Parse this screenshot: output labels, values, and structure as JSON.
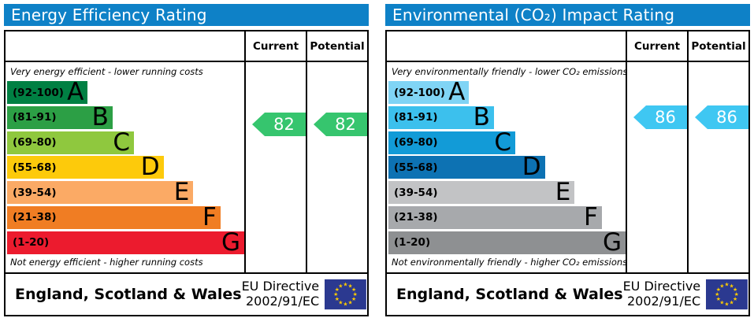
{
  "charts": [
    {
      "title": "Energy Efficiency Rating",
      "header_color": "#0e81c7",
      "columns": [
        "Current",
        "Potential"
      ],
      "caption_top": "Very energy efficient - lower running costs",
      "caption_bottom": "Not energy efficient - higher running costs",
      "bands": [
        {
          "range": "(92-100)",
          "letter": "A",
          "color": "#008043",
          "width_pct": 34
        },
        {
          "range": "(81-91)",
          "letter": "B",
          "color": "#2c9f45",
          "width_pct": 44.5
        },
        {
          "range": "(69-80)",
          "letter": "C",
          "color": "#8fc83e",
          "width_pct": 53.5
        },
        {
          "range": "(55-68)",
          "letter": "D",
          "color": "#fdca0b",
          "width_pct": 66
        },
        {
          "range": "(39-54)",
          "letter": "E",
          "color": "#fbaa65",
          "width_pct": 78.5
        },
        {
          "range": "(21-38)",
          "letter": "F",
          "color": "#f07d23",
          "width_pct": 90
        },
        {
          "range": "(1-20)",
          "letter": "G",
          "color": "#ec1b2e",
          "width_pct": 100
        }
      ],
      "ratings": {
        "current": 82,
        "potential": 82,
        "arrow_color": "#36c56e"
      },
      "footer": {
        "region": "England, Scotland & Wales",
        "directive_line1": "EU Directive",
        "directive_line2": "2002/91/EC"
      }
    },
    {
      "title": "Environmental (CO₂) Impact Rating",
      "header_color": "#0e81c7",
      "columns": [
        "Current",
        "Potential"
      ],
      "caption_top": "Very environmentally friendly - lower CO₂ emissions",
      "caption_bottom": "Not environmentally friendly - higher CO₂ emissions",
      "bands": [
        {
          "range": "(92-100)",
          "letter": "A",
          "color": "#80d4f5",
          "width_pct": 34
        },
        {
          "range": "(81-91)",
          "letter": "B",
          "color": "#3cc0ed",
          "width_pct": 44.5
        },
        {
          "range": "(69-80)",
          "letter": "C",
          "color": "#129bd7",
          "width_pct": 53.5
        },
        {
          "range": "(55-68)",
          "letter": "D",
          "color": "#0d72b3",
          "width_pct": 66
        },
        {
          "range": "(39-54)",
          "letter": "E",
          "color": "#c2c3c5",
          "width_pct": 78.5
        },
        {
          "range": "(21-38)",
          "letter": "F",
          "color": "#a7a9ac",
          "width_pct": 90
        },
        {
          "range": "(1-20)",
          "letter": "G",
          "color": "#8e9092",
          "width_pct": 100
        }
      ],
      "ratings": {
        "current": 86,
        "potential": 86,
        "arrow_color": "#3fc7f2"
      },
      "footer": {
        "region": "England, Scotland & Wales",
        "directive_line1": "EU Directive",
        "directive_line2": "2002/91/EC"
      }
    }
  ],
  "eu_flag": {
    "background": "#2b3990",
    "star_color": "#ffcc00"
  },
  "chart_data": [
    {
      "type": "bar",
      "orientation": "horizontal",
      "title": "Energy Efficiency Rating",
      "categories": [
        "A (92-100)",
        "B (81-91)",
        "C (69-80)",
        "D (55-68)",
        "E (39-54)",
        "F (21-38)",
        "G (1-20)"
      ],
      "values": [
        34,
        44.5,
        53.5,
        66,
        78.5,
        90,
        100
      ],
      "values_note": "band bar lengths as % of scale width (fixed EPC template)",
      "series": [
        {
          "name": "Current",
          "value": 82,
          "band": "B"
        },
        {
          "name": "Potential",
          "value": 82,
          "band": "B"
        }
      ],
      "scale": [
        1,
        100
      ],
      "annotations": [
        "Very energy efficient - lower running costs",
        "Not energy efficient - higher running costs",
        "England, Scotland & Wales",
        "EU Directive 2002/91/EC"
      ]
    },
    {
      "type": "bar",
      "orientation": "horizontal",
      "title": "Environmental (CO₂) Impact Rating",
      "categories": [
        "A (92-100)",
        "B (81-91)",
        "C (69-80)",
        "D (55-68)",
        "E (39-54)",
        "F (21-38)",
        "G (1-20)"
      ],
      "values": [
        34,
        44.5,
        53.5,
        66,
        78.5,
        90,
        100
      ],
      "values_note": "band bar lengths as % of scale width (fixed EPC template)",
      "series": [
        {
          "name": "Current",
          "value": 86,
          "band": "B"
        },
        {
          "name": "Potential",
          "value": 86,
          "band": "B"
        }
      ],
      "scale": [
        1,
        100
      ],
      "annotations": [
        "Very environmentally friendly - lower CO₂ emissions",
        "Not environmentally friendly - higher CO₂ emissions",
        "England, Scotland & Wales",
        "EU Directive 2002/91/EC"
      ]
    }
  ]
}
